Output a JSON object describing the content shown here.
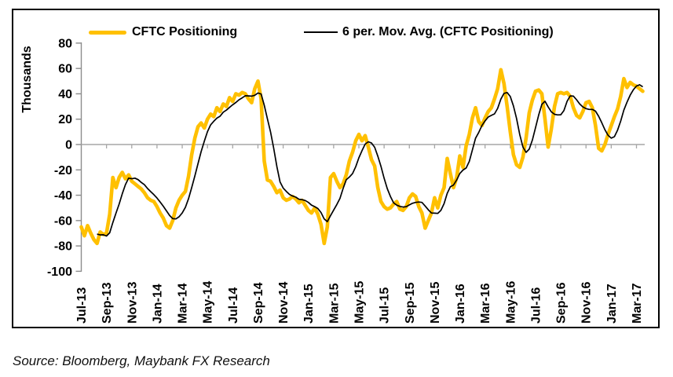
{
  "source_note": "Source: Bloomberg, Maybank FX Research",
  "chart_data": {
    "type": "line",
    "title": "",
    "y_axis_title": "Thousands",
    "ylim": [
      -100,
      80
    ],
    "y_ticks": [
      80,
      60,
      40,
      20,
      0,
      -20,
      -40,
      -60,
      -80,
      -100
    ],
    "x_tick_labels": [
      "Jul-13",
      "Sep-13",
      "Nov-13",
      "Jan-14",
      "Mar-14",
      "May-14",
      "Jul-14",
      "Sep-14",
      "Nov-14",
      "Jan-15",
      "Mar-15",
      "May-15",
      "Jul-15",
      "Sep-15",
      "Nov-15",
      "Jan-16",
      "Mar-16",
      "May-16",
      "Jul-16",
      "Sep-16",
      "Nov-16",
      "Jan-17",
      "Mar-17"
    ],
    "x_points_per_tick": 8,
    "x_frequency": "weekly",
    "grid": "zero-line-only",
    "legend_position": "top-inside",
    "colors": {
      "cftc_line": "#FFC000",
      "moving_average_line": "#000000",
      "zero_gridline": "#A6A6A6",
      "axis_gray": "#8C8C8C"
    },
    "series": [
      {
        "name": "CFTC Positioning",
        "color": "#FFC000",
        "style": "thick-rounded",
        "values": [
          -65,
          -72,
          -64,
          -70,
          -75,
          -78,
          -69,
          -71,
          -70,
          -55,
          -26,
          -34,
          -26,
          -22,
          -27,
          -24,
          -29,
          -31,
          -33,
          -35,
          -38,
          -42,
          -44,
          -45,
          -49,
          -54,
          -58,
          -64,
          -66,
          -60,
          -50,
          -44,
          -40,
          -37,
          -25,
          -8,
          5,
          14,
          17,
          13,
          20,
          24,
          22,
          29,
          26,
          32,
          30,
          37,
          34,
          40,
          39,
          41,
          40,
          36,
          33,
          44,
          50,
          36,
          -13,
          -28,
          -29,
          -33,
          -38,
          -36,
          -42,
          -44,
          -43,
          -41,
          -43,
          -46,
          -44,
          -48,
          -52,
          -54,
          -50,
          -55,
          -63,
          -78,
          -65,
          -26,
          -23,
          -29,
          -34,
          -31,
          -24,
          -13,
          -6,
          3,
          8,
          3,
          7,
          -2,
          -12,
          -17,
          -34,
          -45,
          -49,
          -51,
          -50,
          -47,
          -45,
          -51,
          -52,
          -49,
          -42,
          -39,
          -41,
          -49,
          -54,
          -66,
          -60,
          -54,
          -42,
          -50,
          -40,
          -34,
          -11,
          -23,
          -34,
          -26,
          -9,
          -18,
          -1,
          8,
          21,
          29,
          18,
          15,
          21,
          26,
          29,
          36,
          44,
          59,
          48,
          30,
          10,
          -8,
          -16,
          -18,
          -10,
          5,
          25,
          35,
          42,
          43,
          40,
          20,
          -2,
          12,
          30,
          40,
          41,
          40,
          41,
          38,
          29,
          23,
          21,
          26,
          33,
          34,
          29,
          15,
          -3,
          -5,
          0,
          8,
          15,
          22,
          28,
          38,
          52,
          45,
          49,
          47,
          46,
          44,
          42
        ]
      },
      {
        "name": "6 per. Mov. Avg. (CFTC Positioning)",
        "color": "#000000",
        "style": "thin",
        "window": 6,
        "derived_from": "CFTC Positioning"
      }
    ]
  },
  "legend": {
    "items": [
      {
        "label": "CFTC Positioning"
      },
      {
        "label": "6 per. Mov. Avg. (CFTC Positioning)"
      }
    ]
  }
}
